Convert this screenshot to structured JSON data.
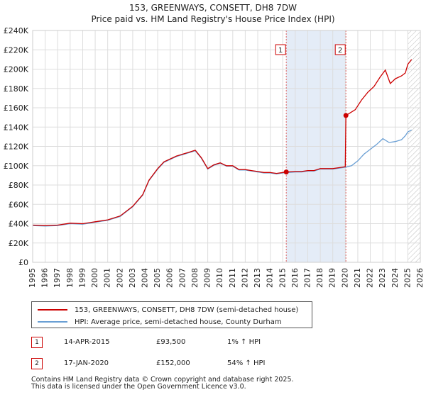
{
  "chart_data": {
    "type": "line",
    "title": "153, GREENWAYS, CONSETT, DH8 7DW",
    "subtitle": "Price paid vs. HM Land Registry's House Price Index (HPI)",
    "xlim": [
      1995,
      2026
    ],
    "ylim": [
      0,
      240000
    ],
    "x_ticks": [
      1995,
      1996,
      1997,
      1998,
      1999,
      2000,
      2001,
      2002,
      2003,
      2004,
      2005,
      2006,
      2007,
      2008,
      2009,
      2010,
      2011,
      2012,
      2013,
      2014,
      2015,
      2016,
      2017,
      2018,
      2019,
      2020,
      2021,
      2022,
      2023,
      2024,
      2025,
      2026
    ],
    "y_ticks": [
      0,
      20000,
      40000,
      60000,
      80000,
      100000,
      120000,
      140000,
      160000,
      180000,
      200000,
      220000,
      240000
    ],
    "y_tick_labels": [
      "£0",
      "£20K",
      "£40K",
      "£60K",
      "£80K",
      "£100K",
      "£120K",
      "£140K",
      "£160K",
      "£180K",
      "£200K",
      "£220K",
      "£240K"
    ],
    "grid": true,
    "highlight_span": [
      2015.28,
      2020.05
    ],
    "projection_start": 2025.0,
    "series": [
      {
        "name": "153, GREENWAYS, CONSETT, DH8 7DW (semi-detached house)",
        "color": "#cc0000",
        "points": [
          [
            1995.0,
            38500
          ],
          [
            1996.0,
            38000
          ],
          [
            1997.0,
            38500
          ],
          [
            1998.0,
            40500
          ],
          [
            1999.0,
            40000
          ],
          [
            2000.0,
            42000
          ],
          [
            2001.0,
            44000
          ],
          [
            2002.0,
            48000
          ],
          [
            2003.0,
            58000
          ],
          [
            2003.8,
            70000
          ],
          [
            2004.3,
            85000
          ],
          [
            2005.0,
            97000
          ],
          [
            2005.5,
            104000
          ],
          [
            2006.5,
            110000
          ],
          [
            2007.0,
            112000
          ],
          [
            2007.5,
            114000
          ],
          [
            2008.0,
            116000
          ],
          [
            2008.5,
            108000
          ],
          [
            2009.0,
            97000
          ],
          [
            2009.5,
            101000
          ],
          [
            2010.0,
            103000
          ],
          [
            2010.5,
            100000
          ],
          [
            2011.0,
            100000
          ],
          [
            2011.5,
            96000
          ],
          [
            2012.0,
            96000
          ],
          [
            2012.5,
            95000
          ],
          [
            2013.0,
            94000
          ],
          [
            2013.5,
            93000
          ],
          [
            2014.0,
            93000
          ],
          [
            2014.5,
            92000
          ],
          [
            2015.0,
            93000
          ],
          [
            2015.28,
            93500
          ],
          [
            2016.0,
            94000
          ],
          [
            2016.5,
            94000
          ],
          [
            2017.0,
            95000
          ],
          [
            2017.5,
            95000
          ],
          [
            2018.0,
            97000
          ],
          [
            2018.5,
            97000
          ],
          [
            2019.0,
            97000
          ],
          [
            2019.5,
            98000
          ],
          [
            2020.0,
            99000
          ],
          [
            2020.05,
            152000
          ],
          [
            2020.3,
            154000
          ],
          [
            2020.8,
            158000
          ],
          [
            2021.3,
            168000
          ],
          [
            2021.8,
            176000
          ],
          [
            2022.3,
            182000
          ],
          [
            2022.8,
            192000
          ],
          [
            2023.2,
            199000
          ],
          [
            2023.6,
            185000
          ],
          [
            2024.0,
            190000
          ],
          [
            2024.5,
            193000
          ],
          [
            2024.8,
            196000
          ],
          [
            2025.0,
            205000
          ],
          [
            2025.3,
            210000
          ]
        ]
      },
      {
        "name": "HPI: Average price, semi-detached house, County Durham",
        "color": "#6a9fd4",
        "points": [
          [
            1995.0,
            38000
          ],
          [
            1996.0,
            37500
          ],
          [
            1997.0,
            38000
          ],
          [
            1998.0,
            40000
          ],
          [
            1999.0,
            39500
          ],
          [
            2000.0,
            41500
          ],
          [
            2001.0,
            43500
          ],
          [
            2002.0,
            47500
          ],
          [
            2003.0,
            57500
          ],
          [
            2003.8,
            69500
          ],
          [
            2004.3,
            84500
          ],
          [
            2005.0,
            96500
          ],
          [
            2005.5,
            103500
          ],
          [
            2006.5,
            109500
          ],
          [
            2007.0,
            111500
          ],
          [
            2007.5,
            113500
          ],
          [
            2008.0,
            115500
          ],
          [
            2008.5,
            107500
          ],
          [
            2009.0,
            96500
          ],
          [
            2009.5,
            100500
          ],
          [
            2010.0,
            102500
          ],
          [
            2010.5,
            99500
          ],
          [
            2011.0,
            99500
          ],
          [
            2011.5,
            95500
          ],
          [
            2012.0,
            95500
          ],
          [
            2012.5,
            94500
          ],
          [
            2013.0,
            93500
          ],
          [
            2013.5,
            92500
          ],
          [
            2014.0,
            92500
          ],
          [
            2014.5,
            91500
          ],
          [
            2015.0,
            92500
          ],
          [
            2015.28,
            92800
          ],
          [
            2016.0,
            93500
          ],
          [
            2016.5,
            93500
          ],
          [
            2017.0,
            94500
          ],
          [
            2017.5,
            94500
          ],
          [
            2018.0,
            96500
          ],
          [
            2018.5,
            96500
          ],
          [
            2019.0,
            96500
          ],
          [
            2019.5,
            97500
          ],
          [
            2020.0,
            98500
          ],
          [
            2020.5,
            100000
          ],
          [
            2021.0,
            105000
          ],
          [
            2021.5,
            112000
          ],
          [
            2022.0,
            117000
          ],
          [
            2022.5,
            122000
          ],
          [
            2023.0,
            128000
          ],
          [
            2023.5,
            124000
          ],
          [
            2024.0,
            125000
          ],
          [
            2024.5,
            127000
          ],
          [
            2024.8,
            131000
          ],
          [
            2025.0,
            135000
          ],
          [
            2025.3,
            137000
          ]
        ]
      }
    ],
    "markers": [
      {
        "label": "1",
        "x": 2015.28,
        "y": 93500
      },
      {
        "label": "2",
        "x": 2020.05,
        "y": 152000
      }
    ]
  },
  "legend": [
    {
      "label": "153, GREENWAYS, CONSETT, DH8 7DW (semi-detached house)",
      "color": "#cc0000"
    },
    {
      "label": "HPI: Average price, semi-detached house, County Durham",
      "color": "#6a9fd4"
    }
  ],
  "sales": [
    {
      "num": "1",
      "date": "14-APR-2015",
      "price": "£93,500",
      "hpi": "1% ↑ HPI"
    },
    {
      "num": "2",
      "date": "17-JAN-2020",
      "price": "£152,000",
      "hpi": "54% ↑ HPI"
    }
  ],
  "footer": {
    "line1": "Contains HM Land Registry data © Crown copyright and database right 2025.",
    "line2": "This data is licensed under the Open Government Licence v3.0."
  }
}
